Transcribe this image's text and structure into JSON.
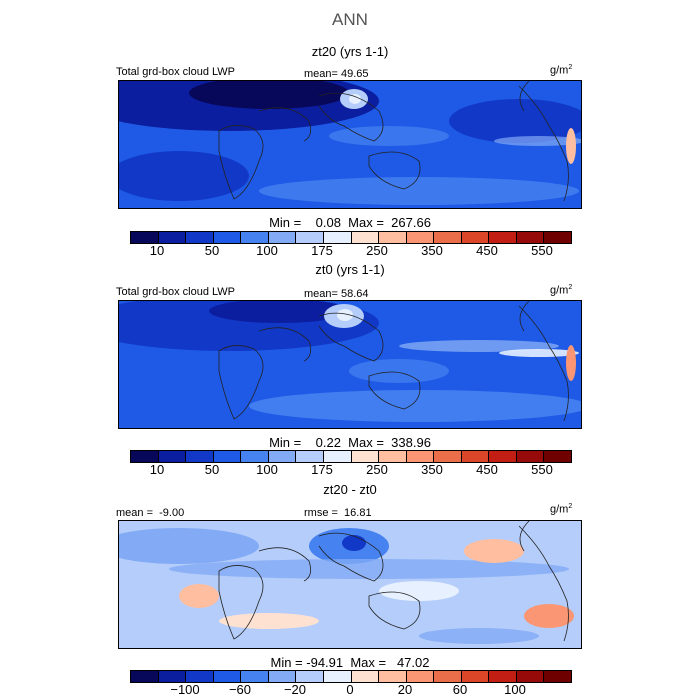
{
  "figure": {
    "title": "ANN"
  },
  "panels": [
    {
      "title": "zt20 (yrs 1-1)",
      "variable_label": "Total grd-box cloud LWP",
      "mean_text": "mean=  49.65",
      "units_main": "g/m",
      "units_exp": "2",
      "min_max_text": "Min =    0.08  Max =  267.66"
    },
    {
      "title": "zt0 (yrs 1-1)",
      "variable_label": "Total grd-box cloud LWP",
      "mean_text": "mean=  58.64",
      "units_main": "g/m",
      "units_exp": "2",
      "min_max_text": "Min =    0.22  Max =  338.96"
    },
    {
      "title": "zt20 - zt0",
      "mean_text": "mean =  -9.00",
      "rmse_text": "rmse =  16.81",
      "units_main": "g/m",
      "units_exp": "2",
      "min_max_text": "Min = -94.91  Max =   47.02"
    }
  ],
  "colorbars": {
    "absolute_ticks": [
      "10",
      "50",
      "100",
      "175",
      "250",
      "350",
      "450",
      "550"
    ],
    "difference_ticks": [
      "−100",
      "−60",
      "−20",
      "0",
      "20",
      "60",
      "100"
    ],
    "colors": [
      "#08085a",
      "#0c1ea0",
      "#1238c8",
      "#1e5ae6",
      "#4682f0",
      "#82aaf5",
      "#b4cdfa",
      "#e6f0ff",
      "#ffe1d2",
      "#ffbea0",
      "#fa9673",
      "#eb6e4b",
      "#dc4628",
      "#c31e14",
      "#960a0a",
      "#6e0000"
    ]
  },
  "chart_data": [
    {
      "type": "heatmap",
      "title": "zt20 (yrs 1-1)",
      "variable": "Total grd-box cloud LWP",
      "units": "g/m^2",
      "mean": 49.65,
      "min": 0.08,
      "max": 267.66,
      "colorbar_levels": [
        10,
        25,
        50,
        75,
        100,
        125,
        150,
        175,
        200,
        250,
        300,
        350,
        400,
        450,
        500,
        550
      ]
    },
    {
      "type": "heatmap",
      "title": "zt0 (yrs 1-1)",
      "variable": "Total grd-box cloud LWP",
      "units": "g/m^2",
      "mean": 58.64,
      "min": 0.22,
      "max": 338.96,
      "colorbar_levels": [
        10,
        25,
        50,
        75,
        100,
        125,
        150,
        175,
        200,
        250,
        300,
        350,
        400,
        450,
        500,
        550
      ]
    },
    {
      "type": "heatmap",
      "title": "zt20 - zt0",
      "units": "g/m^2",
      "mean": -9.0,
      "rmse": 16.81,
      "min": -94.91,
      "max": 47.02,
      "colorbar_levels": [
        -100,
        -80,
        -60,
        -40,
        -20,
        -10,
        -5,
        0,
        5,
        10,
        20,
        40,
        60,
        80,
        100
      ]
    }
  ]
}
